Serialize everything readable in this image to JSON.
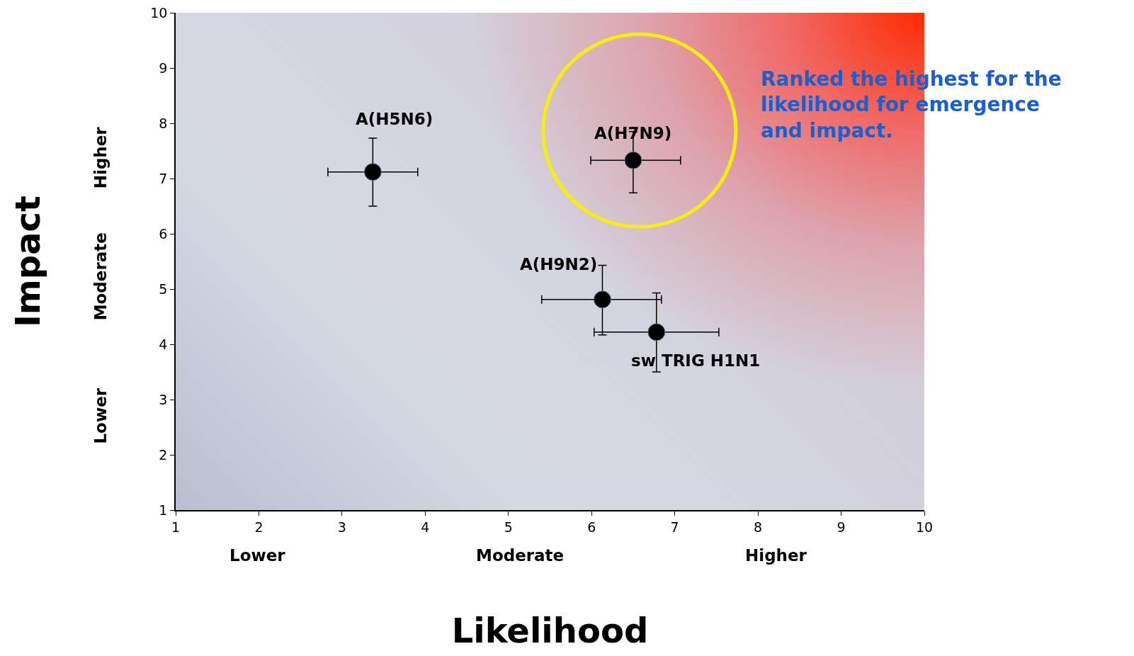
{
  "chart_data": {
    "type": "scatter",
    "xlabel": "Likelihood",
    "ylabel": "Impact",
    "series": [
      {
        "name": "A(H5N6)",
        "color": "#000000",
        "x": [
          3.37
        ],
        "values": [
          7.12
        ],
        "errors": [
          [
            6.5,
            7.73
          ]
        ],
        "xerrors": [
          [
            2.83,
            3.91
          ]
        ]
      },
      {
        "name": "A(H7N9)",
        "color": "#000000",
        "x": [
          6.5
        ],
        "values": [
          7.33
        ],
        "errors": [
          [
            6.74,
            7.85
          ]
        ],
        "xerrors": [
          [
            5.99,
            7.07
          ]
        ]
      },
      {
        "name": "A(H9N2)",
        "color": "#000000",
        "x": [
          6.13
        ],
        "values": [
          4.81
        ],
        "errors": [
          [
            4.17,
            5.43
          ]
        ],
        "xerrors": [
          [
            5.4,
            6.84
          ]
        ]
      },
      {
        "name": "sw TRIG H1N1",
        "color": "#000000",
        "x": [
          6.78
        ],
        "values": [
          4.22
        ],
        "errors": [
          [
            3.5,
            4.93
          ]
        ],
        "xerrors": [
          [
            6.03,
            7.53
          ]
        ]
      }
    ],
    "annotations": [
      "Lower",
      "Moderate",
      "Higher",
      "Lower",
      "Moderate",
      "Higher",
      "Ranked the highest for the\nlikelihood for emergence\nand impact."
    ],
    "xlim": [
      1,
      10
    ],
    "xticks": [
      1,
      2,
      3,
      4,
      5,
      6,
      7,
      8,
      9,
      10
    ],
    "ylim": [
      1,
      10
    ],
    "yticks": [
      1,
      2,
      3,
      4,
      5,
      6,
      7,
      8,
      9,
      10
    ],
    "grid": false,
    "legend": false,
    "marker": "circle"
  }
}
